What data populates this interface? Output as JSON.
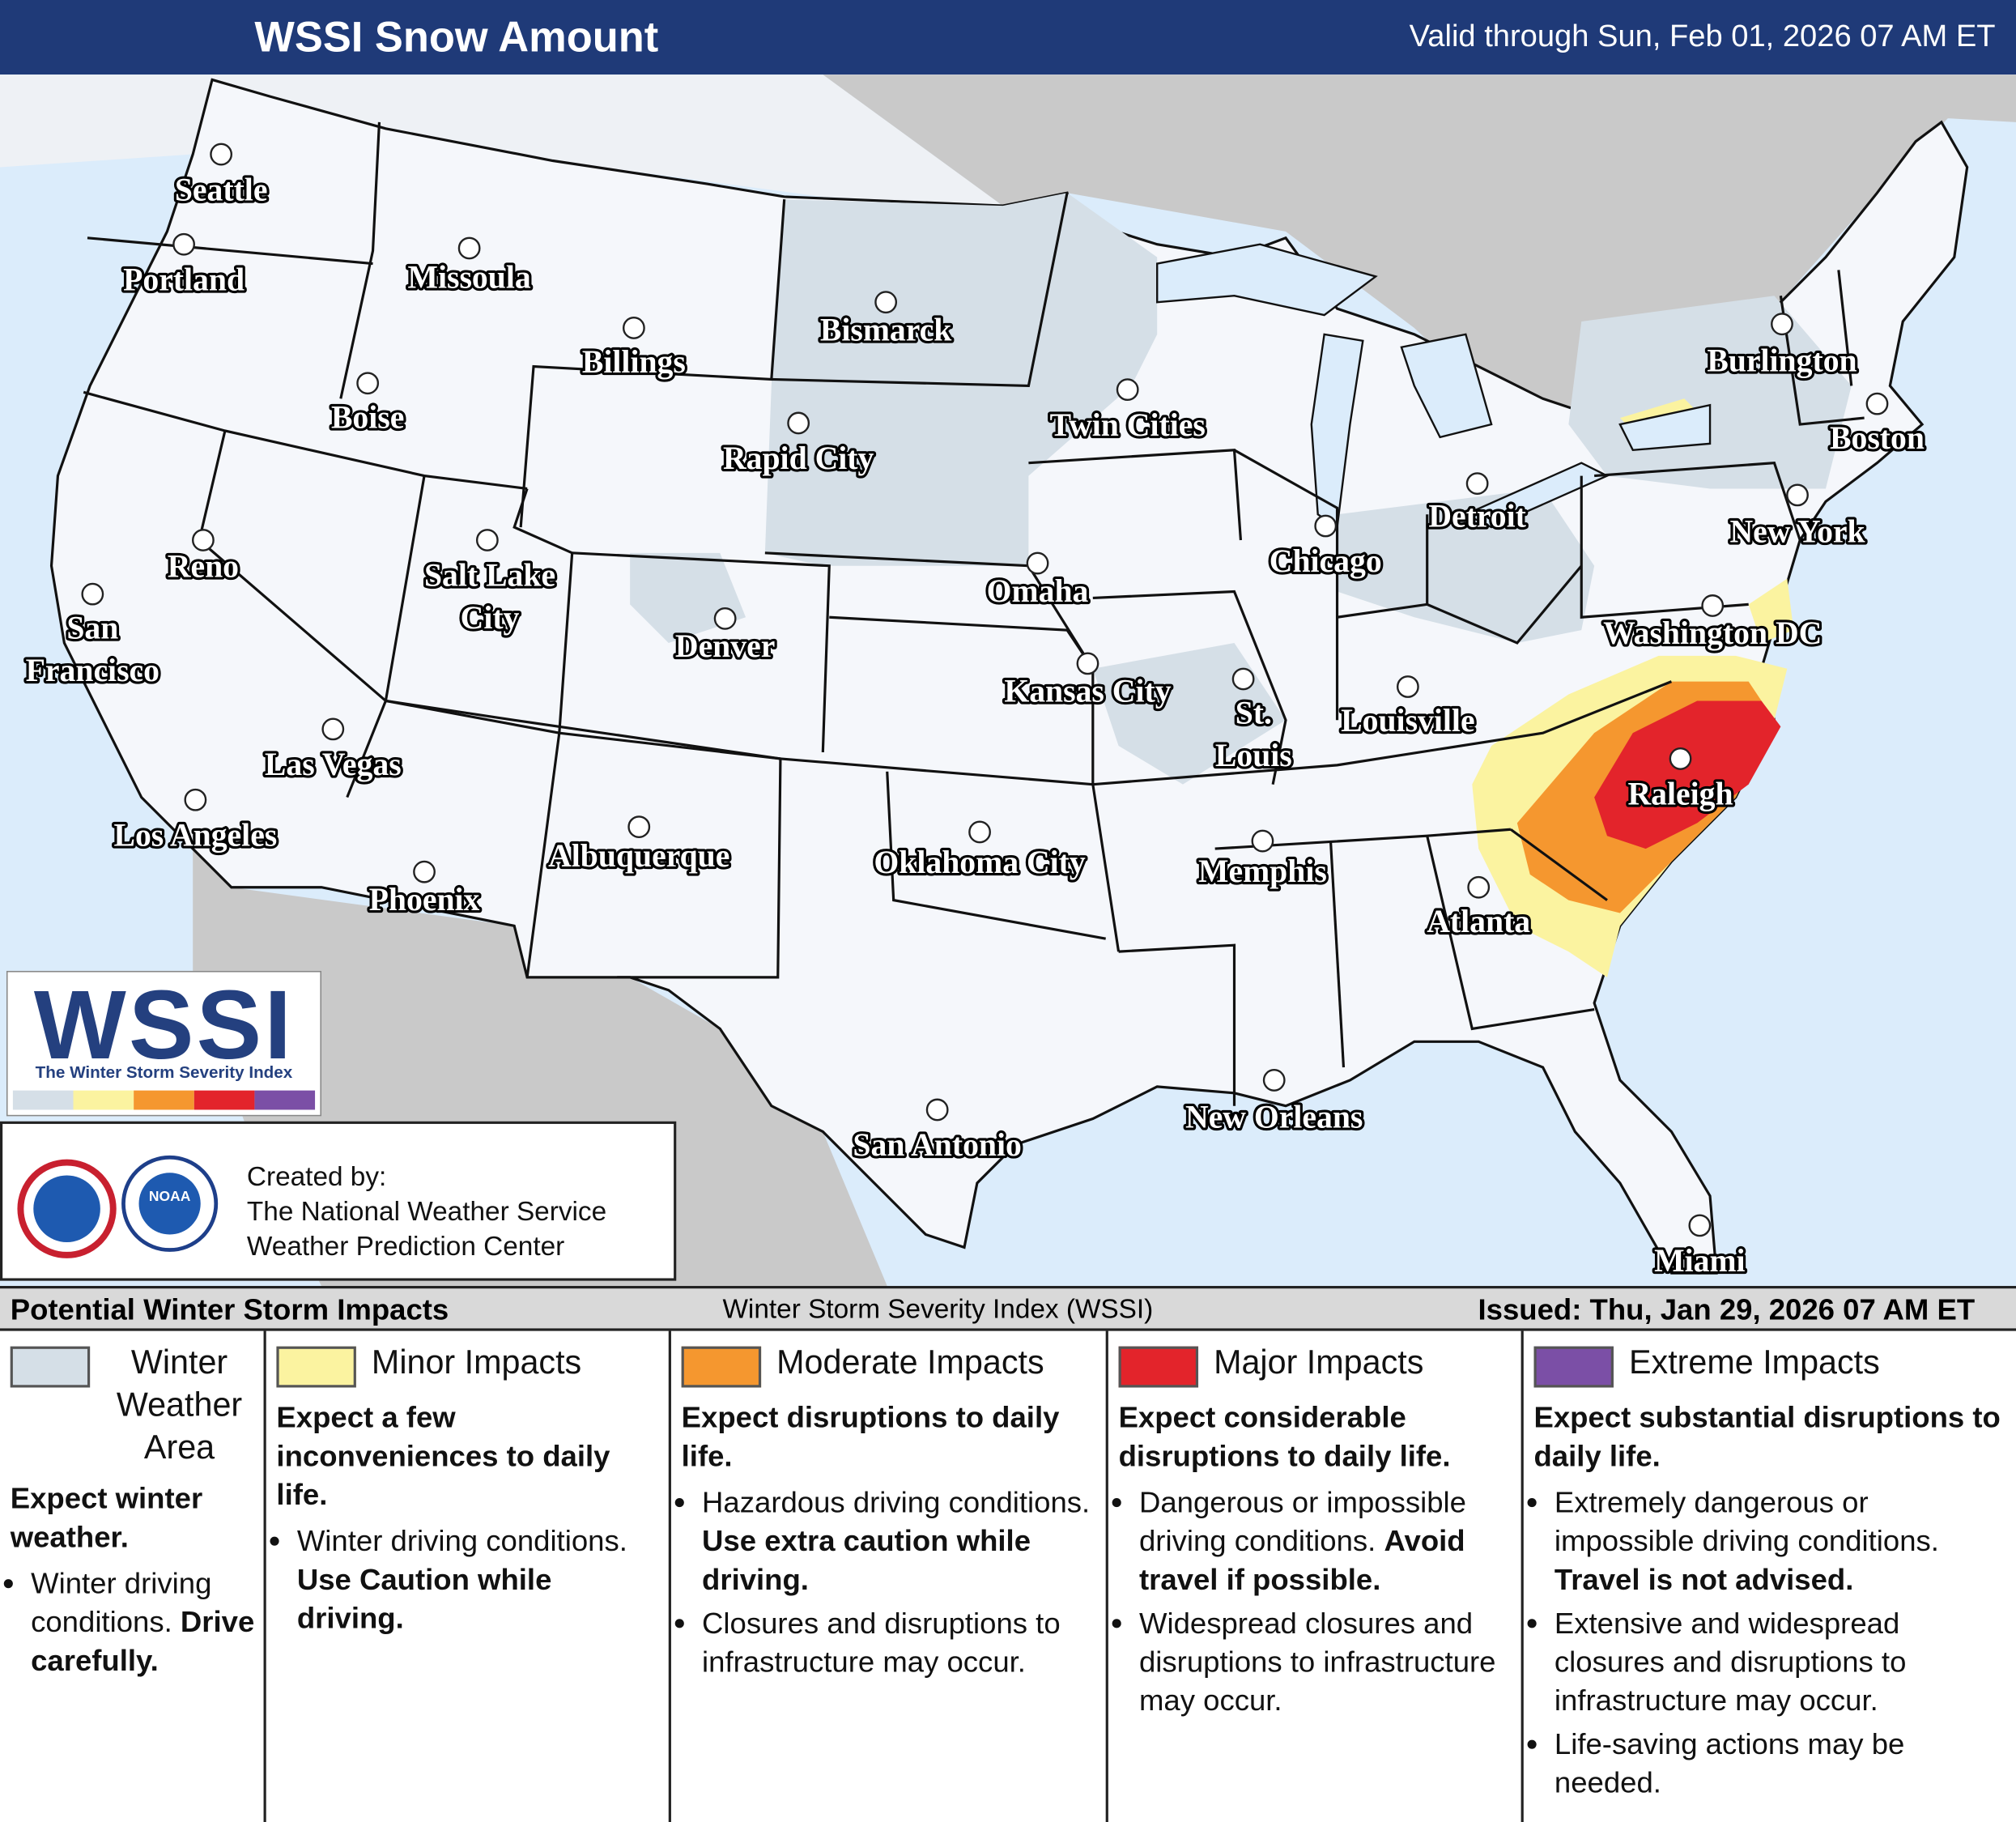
{
  "header": {
    "title": "WSSI Snow Amount",
    "valid": "Valid through Sun, Feb 01, 2026 07 AM ET"
  },
  "map": {
    "cities": [
      "Seattle",
      "Portland",
      "Missoula",
      "Billings",
      "Bismarck",
      "Boise",
      "Rapid City",
      "Twin Cities",
      "Reno",
      "Salt Lake City",
      "San Francisco",
      "Denver",
      "Omaha",
      "Chicago",
      "Detroit",
      "Burlington",
      "Boston",
      "New York",
      "Washington DC",
      "Kansas City",
      "St. Louis",
      "Louisville",
      "Las Vegas",
      "Los Angeles",
      "Raleigh",
      "Memphis",
      "Oklahoma City",
      "Albuquerque",
      "Phoenix",
      "Atlanta",
      "New Orleans",
      "San Antonio",
      "Miami"
    ]
  },
  "logo": {
    "text": "WSSI",
    "subtitle": "The Winter Storm Severity Index"
  },
  "credits": {
    "seal": "NOAA",
    "lines": [
      "Created by:",
      "The National Weather Service",
      "Weather Prediction Center"
    ]
  },
  "legend": {
    "title": "Potential Winter Storm Impacts",
    "index": "Winter Storm Severity Index (WSSI)",
    "issued": "Issued: Thu, Jan 29, 2026 07 AM ET",
    "categories": [
      {
        "name": "Winter Weather Area",
        "color": "#d5dfe7",
        "summary": "Expect winter weather.",
        "bullets": [
          {
            "text": "Winter driving conditions.",
            "emphasis": "Drive carefully."
          }
        ]
      },
      {
        "name": "Minor Impacts",
        "color": "#fbf3a0",
        "summary": "Expect a few inconveniences to daily life.",
        "bullets": [
          {
            "text": "Winter driving conditions.",
            "emphasis": "Use Caution while driving."
          }
        ]
      },
      {
        "name": "Moderate Impacts",
        "color": "#f5972f",
        "summary": "Expect disruptions to daily life.",
        "bullets": [
          {
            "text": "Hazardous driving conditions.",
            "emphasis": "Use extra caution while driving."
          },
          {
            "text": "Closures and disruptions to infrastructure may occur."
          }
        ]
      },
      {
        "name": "Major Impacts",
        "color": "#e3242b",
        "summary": "Expect considerable disruptions to daily life.",
        "bullets": [
          {
            "text": "Dangerous or impossible driving conditions.",
            "emphasis": "Avoid travel if possible."
          },
          {
            "text": "Widespread closures and disruptions to infrastructure may occur."
          }
        ]
      },
      {
        "name": "Extreme Impacts",
        "color": "#7b4fa6",
        "summary": "Expect substantial disruptions to daily life.",
        "bullets": [
          {
            "text": "Extremely dangerous or impossible driving conditions.",
            "emphasis": "Travel is not advised."
          },
          {
            "text": "Extensive and widespread closures and disruptions to infrastructure may occur."
          },
          {
            "text": "Life-saving actions may be needed."
          }
        ]
      }
    ]
  }
}
